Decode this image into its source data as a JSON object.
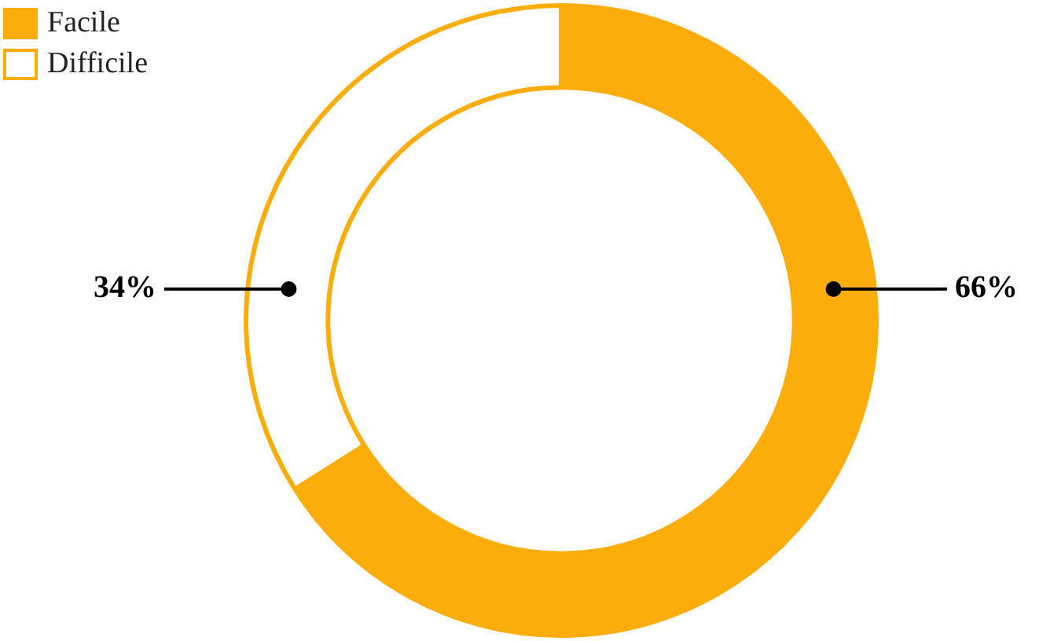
{
  "chart_data": {
    "type": "donut",
    "categories": [
      "Facile",
      "Difficile"
    ],
    "values": [
      66,
      34
    ],
    "colors": [
      "#fbad0c",
      "#ffffff"
    ],
    "value_labels": [
      "66%",
      "34%"
    ],
    "legend": "top left"
  }
}
